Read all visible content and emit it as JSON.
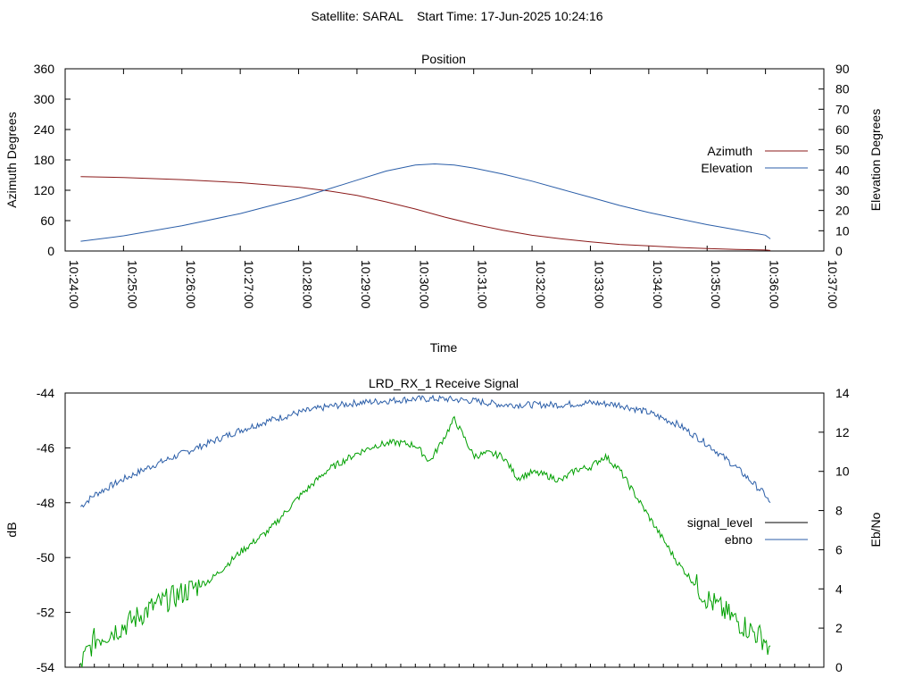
{
  "header": "Satellite: SARAL    Start Time: 17-Jun-2025 10:24:16",
  "colors": {
    "azimuth": "#8b1a1a",
    "elevation": "#2b5ea8",
    "signal_level": "#000000",
    "ebno": "#2b5ea8",
    "green_trace": "#00a000"
  },
  "chart_data": [
    {
      "type": "line",
      "title": "Position",
      "xlabel": "Time",
      "ylabel": "Azimuth Degrees",
      "y2label": "Elevation Degrees",
      "xlim": [
        "10:24:00",
        "10:37:00"
      ],
      "ylim": [
        0,
        360
      ],
      "y2lim": [
        0,
        90
      ],
      "x_ticks": [
        "10:24:00",
        "10:25:00",
        "10:26:00",
        "10:27:00",
        "10:28:00",
        "10:29:00",
        "10:30:00",
        "10:31:00",
        "10:32:00",
        "10:33:00",
        "10:34:00",
        "10:35:00",
        "10:36:00",
        "10:37:00"
      ],
      "y_ticks": [
        "0",
        "60",
        "120",
        "180",
        "240",
        "300",
        "360"
      ],
      "y2_ticks": [
        "0",
        "10",
        "20",
        "30",
        "40",
        "50",
        "60",
        "70",
        "80",
        "90"
      ],
      "legend_position": "right",
      "series": [
        {
          "name": "Azimuth",
          "axis": "y",
          "x": [
            "10:24:16",
            "10:25:00",
            "10:26:00",
            "10:27:00",
            "10:28:00",
            "10:28:30",
            "10:29:00",
            "10:29:30",
            "10:30:00",
            "10:30:30",
            "10:31:00",
            "10:31:30",
            "10:32:00",
            "10:32:30",
            "10:33:00",
            "10:33:30",
            "10:34:00",
            "10:34:30",
            "10:35:00",
            "10:35:30",
            "10:36:00",
            "10:36:05"
          ],
          "values": [
            147,
            145,
            141,
            135,
            126,
            119,
            110,
            97,
            83,
            67,
            53,
            41,
            31,
            24,
            18,
            13,
            10,
            7,
            5,
            3,
            2,
            1
          ]
        },
        {
          "name": "Elevation",
          "axis": "y2",
          "x": [
            "10:24:16",
            "10:25:00",
            "10:26:00",
            "10:27:00",
            "10:28:00",
            "10:28:30",
            "10:29:00",
            "10:29:30",
            "10:30:00",
            "10:30:20",
            "10:30:40",
            "10:31:00",
            "10:31:30",
            "10:32:00",
            "10:32:30",
            "10:33:00",
            "10:33:30",
            "10:34:00",
            "10:34:30",
            "10:35:00",
            "10:35:30",
            "10:36:00",
            "10:36:05"
          ],
          "values": [
            4.8,
            7.5,
            12.5,
            18.5,
            26,
            30.5,
            35,
            39.5,
            42.5,
            43,
            42.5,
            41,
            38,
            34.5,
            30.5,
            26.5,
            22.5,
            19,
            16,
            13,
            10.5,
            7.8,
            6
          ]
        }
      ]
    },
    {
      "type": "line",
      "title": "LRD_RX_1 Receive Signal",
      "xlabel": "",
      "ylabel": "dB",
      "y2label": "Eb/No",
      "xlim": [
        "10:24:00",
        "10:37:00"
      ],
      "ylim": [
        -54,
        -44
      ],
      "y2lim": [
        0,
        14
      ],
      "y_ticks": [
        "-54",
        "-52",
        "-50",
        "-48",
        "-46",
        "-44"
      ],
      "y2_ticks": [
        "0",
        "2",
        "4",
        "6",
        "8",
        "10",
        "12",
        "14"
      ],
      "legend_position": "right",
      "series": [
        {
          "name": "signal_level",
          "axis": "y",
          "x": [],
          "values": []
        },
        {
          "name": "ebno",
          "axis": "y2",
          "x": [
            "10:24:16",
            "10:24:30",
            "10:25:00",
            "10:25:30",
            "10:26:00",
            "10:26:30",
            "10:27:00",
            "10:27:30",
            "10:28:00",
            "10:28:30",
            "10:29:00",
            "10:29:30",
            "10:30:00",
            "10:30:30",
            "10:31:00",
            "10:31:30",
            "10:32:00",
            "10:32:30",
            "10:33:00",
            "10:33:30",
            "10:34:00",
            "10:34:30",
            "10:35:00",
            "10:35:30",
            "10:36:00",
            "10:36:05"
          ],
          "values": [
            8.2,
            8.8,
            9.6,
            10.3,
            10.9,
            11.5,
            12.1,
            12.6,
            13.0,
            13.3,
            13.5,
            13.6,
            13.7,
            13.7,
            13.6,
            13.4,
            13.4,
            13.4,
            13.5,
            13.4,
            13.0,
            12.4,
            11.4,
            10.2,
            8.8,
            8.3
          ]
        },
        {
          "name": "",
          "axis": "y",
          "x": [
            "10:24:16",
            "10:24:30",
            "10:25:00",
            "10:25:30",
            "10:26:00",
            "10:26:30",
            "10:27:00",
            "10:27:30",
            "10:28:00",
            "10:28:30",
            "10:29:00",
            "10:29:20",
            "10:29:40",
            "10:30:00",
            "10:30:15",
            "10:30:30",
            "10:30:40",
            "10:30:50",
            "10:31:00",
            "10:31:15",
            "10:31:30",
            "10:31:45",
            "10:32:00",
            "10:32:15",
            "10:32:30",
            "10:32:45",
            "10:33:00",
            "10:33:15",
            "10:33:30",
            "10:34:00",
            "10:34:30",
            "10:35:00",
            "10:35:30",
            "10:36:00",
            "10:36:05"
          ],
          "values": [
            -53.9,
            -53.0,
            -52.5,
            -51.8,
            -51.3,
            -50.8,
            -49.8,
            -49.0,
            -47.8,
            -46.8,
            -46.2,
            -45.9,
            -45.8,
            -45.9,
            -46.5,
            -45.6,
            -44.95,
            -45.6,
            -46.3,
            -46.2,
            -46.3,
            -47.1,
            -46.9,
            -47.0,
            -47.2,
            -46.8,
            -46.7,
            -46.3,
            -46.8,
            -48.5,
            -50.2,
            -51.5,
            -52.3,
            -53.0,
            -53.6
          ]
        }
      ]
    }
  ]
}
